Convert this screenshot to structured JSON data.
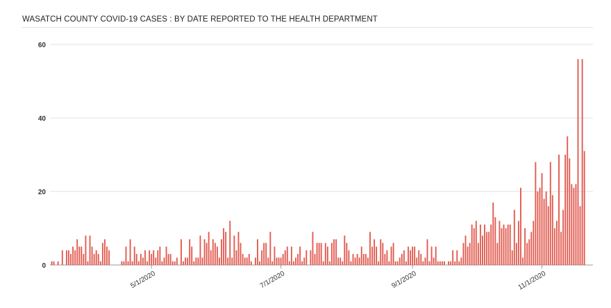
{
  "title": "WASATCH COUNTY COVID-19 CASES : BY DATE REPORTED TO THE HEALTH DEPARTMENT",
  "chart_data": {
    "type": "bar",
    "title": "WASATCH COUNTY COVID-19 CASES : BY DATE REPORTED TO THE HEALTH DEPARTMENT",
    "xlabel": "",
    "ylabel": "",
    "x_start": "2020-03-15",
    "x_end": "2020-11-18",
    "ylim": [
      0,
      60
    ],
    "y_ticks": [
      0,
      20,
      40,
      60
    ],
    "x_ticks": [
      "5/1/2020",
      "7/1/2020",
      "9/1/2020",
      "11/1/2020"
    ],
    "grid": true,
    "legend": "none",
    "bar_color": "#e25b50",
    "values": [
      1,
      1,
      0,
      1,
      0,
      4,
      0,
      4,
      4,
      3,
      5,
      4,
      7,
      5,
      5,
      3,
      8,
      1,
      8,
      5,
      3,
      4,
      3,
      1,
      6,
      7,
      5,
      4,
      0,
      0,
      0,
      0,
      0,
      1,
      1,
      5,
      1,
      7,
      1,
      5,
      3,
      1,
      3,
      2,
      4,
      1,
      4,
      3,
      4,
      2,
      4,
      5,
      1,
      2,
      5,
      3,
      3,
      1,
      1,
      2,
      0,
      7,
      1,
      2,
      2,
      7,
      5,
      1,
      2,
      2,
      8,
      2,
      7,
      6,
      9,
      4,
      7,
      6,
      5,
      2,
      7,
      10,
      9,
      2,
      12,
      2,
      8,
      4,
      9,
      6,
      3,
      2,
      2,
      3,
      1,
      0,
      2,
      7,
      1,
      4,
      6,
      6,
      2,
      9,
      1,
      5,
      2,
      2,
      2,
      3,
      4,
      5,
      1,
      5,
      1,
      2,
      3,
      5,
      1,
      2,
      4,
      0,
      4,
      9,
      3,
      6,
      6,
      6,
      1,
      6,
      5,
      1,
      6,
      7,
      7,
      2,
      2,
      1,
      8,
      6,
      4,
      1,
      3,
      2,
      3,
      2,
      5,
      3,
      3,
      2,
      9,
      5,
      7,
      5,
      1,
      7,
      6,
      3,
      4,
      1,
      5,
      6,
      1,
      1,
      2,
      3,
      4,
      1,
      5,
      4,
      5,
      5,
      2,
      4,
      3,
      1,
      2,
      7,
      1,
      5,
      2,
      5,
      1,
      1,
      1,
      1,
      0,
      1,
      1,
      4,
      1,
      4,
      1,
      2,
      6,
      8,
      5,
      6,
      11,
      10,
      12,
      6,
      11,
      8,
      11,
      9,
      9,
      11,
      17,
      13,
      6,
      12,
      10,
      11,
      10,
      11,
      11,
      4,
      15,
      6,
      12,
      21,
      2,
      10,
      6,
      7,
      9,
      12,
      28,
      20,
      21,
      25,
      18,
      20,
      16,
      28,
      19,
      10,
      12,
      30,
      9,
      15,
      30,
      35,
      29,
      22,
      21,
      22,
      56,
      16,
      56,
      31
    ]
  }
}
